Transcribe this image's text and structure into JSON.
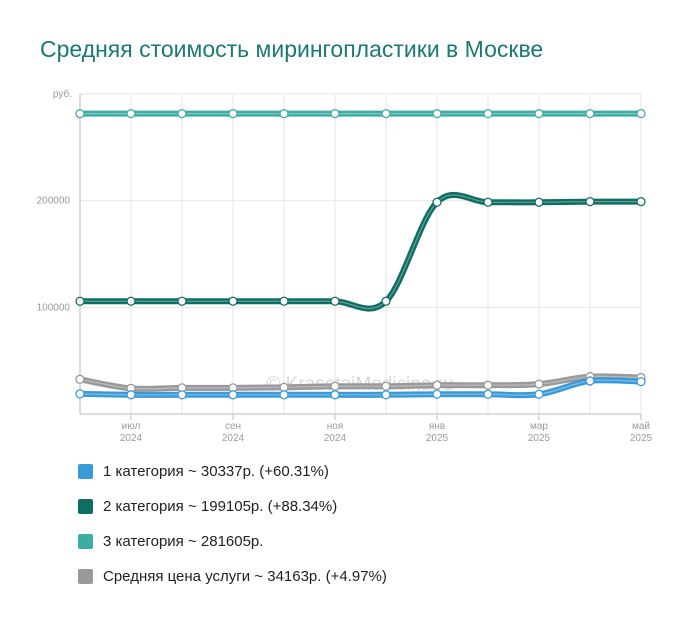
{
  "title": "Средняя стоимость мирингопластики в Москве",
  "watermark": "© KrasotaiMedicina.ru",
  "colors": {
    "series1": "#3a9ad9",
    "series2": "#0f6e63",
    "series3": "#3dada3",
    "series4": "#999999",
    "grid": "#e6e6e6",
    "axis": "#bbbbbb"
  },
  "chart_data": {
    "type": "line",
    "y_unit_label": "руб.",
    "ylim": [
      0,
      300000
    ],
    "yticks": [
      {
        "value": 100000,
        "label": "100000"
      },
      {
        "value": 200000,
        "label": "200000"
      }
    ],
    "x_labels": [
      {
        "index": 1,
        "month": "июл",
        "year": "2024"
      },
      {
        "index": 3,
        "month": "сен",
        "year": "2024"
      },
      {
        "index": 5,
        "month": "ноя",
        "year": "2024"
      },
      {
        "index": 7,
        "month": "янв",
        "year": "2025"
      },
      {
        "index": 9,
        "month": "мар",
        "year": "2025"
      },
      {
        "index": 11,
        "month": "май",
        "year": "2025"
      }
    ],
    "points": 12,
    "series": [
      {
        "name": "3 категория",
        "values": [
          281605,
          281605,
          281605,
          281605,
          281605,
          281605,
          281605,
          281605,
          281605,
          281605,
          281605,
          281605
        ]
      },
      {
        "name": "2 категория",
        "values": [
          105700,
          105700,
          105700,
          105700,
          105700,
          105700,
          105700,
          198500,
          198500,
          198500,
          199105,
          199105
        ]
      },
      {
        "name": "Средняя цена услуги",
        "values": [
          32500,
          24000,
          24500,
          24500,
          25000,
          26000,
          26000,
          27000,
          27000,
          28000,
          35000,
          34163
        ]
      },
      {
        "name": "1 категория",
        "values": [
          18900,
          18000,
          18000,
          18000,
          18000,
          18000,
          18000,
          18500,
          18500,
          18500,
          31000,
          30337
        ]
      }
    ]
  },
  "legend": [
    {
      "label": "1 категория ~ 30337р. (+60.31%)",
      "color": "#3a9ad9"
    },
    {
      "label": "2 категория ~ 199105р. (+88.34%)",
      "color": "#0f6e63"
    },
    {
      "label": "3 категория ~ 281605р.",
      "color": "#3dada3"
    },
    {
      "label": "Средняя цена услуги ~ 34163р. (+4.97%)",
      "color": "#999999"
    }
  ]
}
